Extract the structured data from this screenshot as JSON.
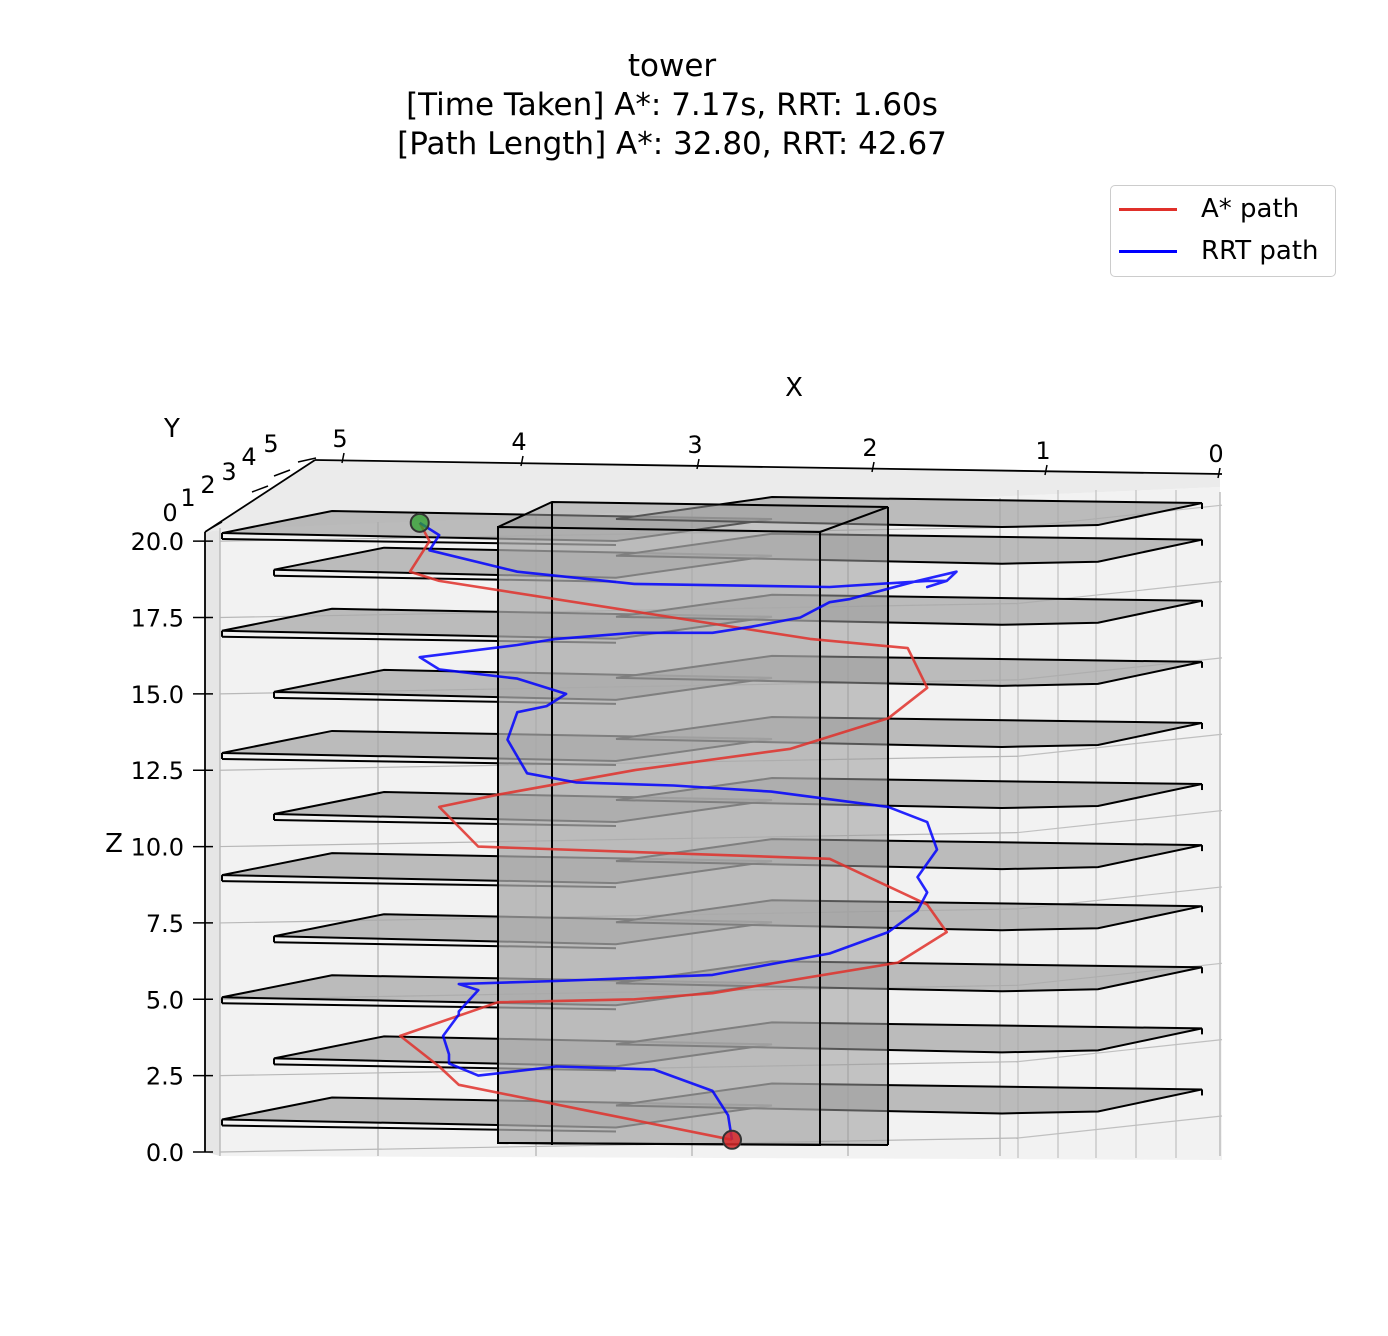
{
  "title": {
    "line1": "tower",
    "line2": "[Time Taken] A*: 7.17s, RRT: 1.60s",
    "line3": "[Path Length] A*: 32.80, RRT: 42.67"
  },
  "legend": {
    "placement": "top-right",
    "items": [
      {
        "label": "A* path",
        "color": "#e0302a"
      },
      {
        "label": "RRT path",
        "color": "#0000ff"
      }
    ]
  },
  "chart_data": {
    "type": "line",
    "projection": "3d",
    "axes": {
      "x": {
        "label": "X",
        "ticks": [
          "0",
          "1",
          "2",
          "3",
          "4",
          "5"
        ],
        "range": [
          0,
          5.2
        ]
      },
      "y": {
        "label": "Y",
        "ticks": [
          "0",
          "1",
          "2",
          "3",
          "4",
          "5"
        ],
        "range": [
          0,
          5
        ]
      },
      "z": {
        "label": "Z",
        "ticks": [
          "0.0",
          "2.5",
          "5.0",
          "7.5",
          "10.0",
          "12.5",
          "15.0",
          "17.5",
          "20.0"
        ],
        "range": [
          0,
          20.3
        ]
      }
    },
    "grid": true,
    "obstacles": {
      "tower": {
        "x": [
          1.8,
          3.9
        ],
        "z": [
          0,
          20.5
        ]
      },
      "floor_heights": [
        1.0,
        3.0,
        5.0,
        7.0,
        9.0,
        11.0,
        13.0,
        15.0,
        17.0,
        19.0,
        20.2
      ]
    },
    "start": {
      "x": 2.5,
      "z": 0.4,
      "color": "#d62728"
    },
    "goal": {
      "x": 4.1,
      "z": 20.6,
      "color": "#2ca02c"
    },
    "series": [
      {
        "name": "A* path",
        "color": "#e0302a",
        "x": [
          2.5,
          3.2,
          3.9,
          4.0,
          4.2,
          3.7,
          3.0,
          2.6,
          1.65,
          1.4,
          1.5,
          2.0,
          3.8,
          4.0,
          3.7,
          3.0,
          2.2,
          1.7,
          1.5,
          1.6,
          2.1,
          2.9,
          4.0,
          4.15,
          4.05,
          4.1
        ],
        "z": [
          0.4,
          1.3,
          2.2,
          2.8,
          3.8,
          4.9,
          5.0,
          5.2,
          6.2,
          7.2,
          8.1,
          9.6,
          10.0,
          11.3,
          11.7,
          12.5,
          13.2,
          14.2,
          15.2,
          16.5,
          16.8,
          17.6,
          18.7,
          19.0,
          20.0,
          20.6
        ]
      },
      {
        "name": "RRT path",
        "color": "#0000ff",
        "x": [
          2.5,
          2.52,
          2.6,
          2.9,
          3.4,
          3.8,
          3.95,
          3.95,
          3.98,
          3.9,
          3.9,
          3.8,
          3.9,
          3.4,
          2.6,
          2.0,
          1.7,
          1.55,
          1.5,
          1.55,
          1.45,
          1.5,
          1.7,
          2.3,
          2.8,
          3.3,
          3.55,
          3.65,
          3.6,
          3.45,
          3.35,
          3.6,
          4.0,
          4.1,
          3.6,
          3.4,
          3.0,
          2.6,
          2.4,
          2.15,
          2.0,
          1.9,
          1.55,
          1.35,
          1.4,
          1.5,
          1.4,
          1.5,
          2.0,
          3.0,
          3.6,
          4.05,
          4.0,
          4.1
        ],
        "z": [
          0.4,
          1.2,
          2.0,
          2.7,
          2.8,
          2.5,
          2.9,
          3.2,
          3.8,
          4.5,
          4.6,
          5.3,
          5.5,
          5.6,
          5.8,
          6.5,
          7.2,
          7.9,
          8.5,
          9.0,
          9.9,
          10.8,
          11.3,
          11.8,
          12.0,
          12.1,
          12.4,
          13.5,
          14.4,
          14.6,
          15.0,
          15.5,
          15.8,
          16.2,
          16.6,
          16.8,
          17.0,
          17.0,
          17.2,
          17.5,
          18.0,
          18.1,
          18.7,
          19.0,
          18.7,
          18.5,
          18.7,
          18.7,
          18.5,
          18.6,
          19.0,
          19.7,
          20.2,
          20.6
        ]
      }
    ]
  }
}
